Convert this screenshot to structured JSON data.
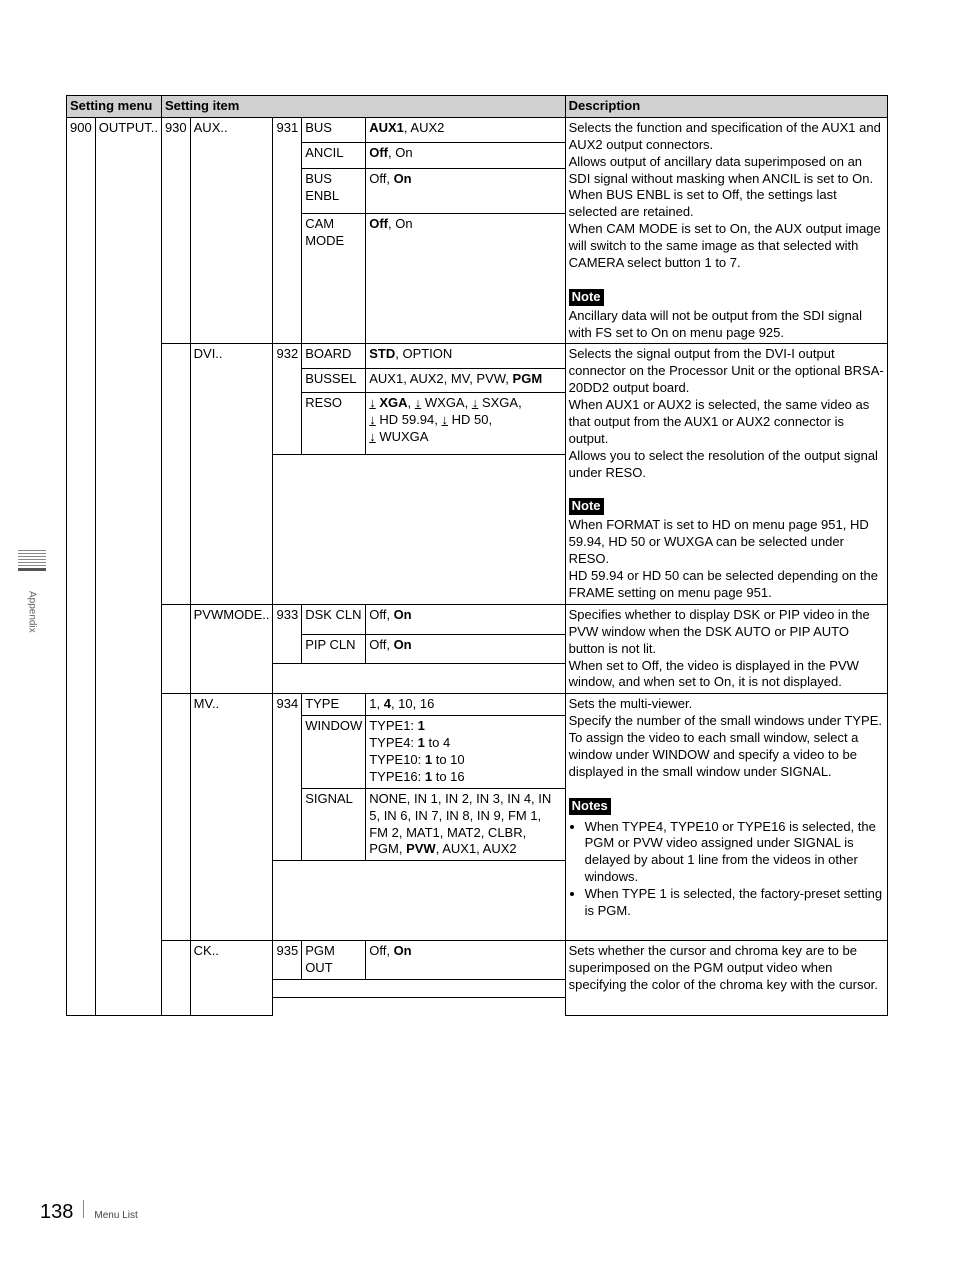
{
  "sidebar": {
    "label": "Appendix"
  },
  "footer": {
    "page": "138",
    "label": "Menu List"
  },
  "headers": {
    "menu": "Setting menu",
    "item": "Setting item",
    "desc": "Description"
  },
  "menu": {
    "num": "900",
    "name": "OUTPUT.."
  },
  "groups": [
    {
      "item_num": "930",
      "item_name": "AUX..",
      "rows": [
        {
          "sub_num": "931",
          "sub_name": "BUS",
          "values_html": "<b>AUX1</b>, AUX2"
        },
        {
          "sub_name": "ANCIL",
          "values_html": "<b>Off</b>, On"
        },
        {
          "sub_name": "BUS ENBL",
          "values_html": "Off, <b>On</b>"
        },
        {
          "sub_name": "CAM MODE",
          "values_html": "<b>Off</b>, On",
          "tall": 130
        }
      ],
      "desc_html": "Selects the function and specification of the AUX1 and AUX2 output connectors.<br>Allows output of ancillary data superimposed on an SDI signal without masking when ANCIL is set to On.<br>When BUS ENBL is set to Off, the settings last selected are retained.<br>When CAM MODE is set to On, the AUX output image will switch to the same image as that selected with CAMERA select button 1 to 7.<br><br><span class=\"note-badge\">Note</span><br>Ancillary data will not be output from the SDI signal with FS set to On on menu page 925."
    },
    {
      "item_name": "DVI..",
      "rows": [
        {
          "sub_num": "932",
          "sub_name": "BOARD",
          "values_html": "<b>STD</b>, OPTION"
        },
        {
          "sub_name": "BUSSEL",
          "values_html": "AUX1, AUX2, MV, PVW, <b>PGM</b>"
        },
        {
          "sub_name": "RESO",
          "values_html": "<u>↓</u> <b>XGA</b>, <u>↓</u> WXGA, <u>↓</u> SXGA,<br><u>↓</u> HD 59.94, <u>↓</u> HD 50,<br><u>↓</u> WUXGA"
        },
        {
          "blank": true,
          "tall": 150
        }
      ],
      "desc_html": "Selects the signal output from the DVI-I output connector on the Processor Unit or the optional BRSA-20DD2 output board.<br>When AUX1 or AUX2 is selected, the same video as that output from the AUX1 or AUX2 connector is output.<br>Allows you to select the resolution of the output signal under RESO.<br><br><span class=\"note-badge\">Note</span><br>When FORMAT is set to HD on menu page 951, HD 59.94, HD 50 or WUXGA can be selected under RESO.<br>HD 59.94 or HD 50 can be selected depending on the FRAME setting on menu page 951."
    },
    {
      "item_name": "PVWMODE..",
      "rows": [
        {
          "sub_num": "933",
          "sub_name": "DSK CLN",
          "values_html": "Off, <b>On</b>"
        },
        {
          "sub_name": "PIP CLN",
          "values_html": "Off, <b>On</b>"
        },
        {
          "blank": true,
          "tall": 30
        }
      ],
      "desc_html": "Specifies whether to display DSK or PIP video in the PVW window when the DSK AUTO or PIP AUTO button is not lit.<br>When set to Off, the video is displayed in the PVW window, and when set to On, it is not displayed."
    },
    {
      "item_name": "MV..",
      "rows": [
        {
          "sub_num": "934",
          "sub_name": "TYPE",
          "values_html": "1, <b>4</b>, 10, 16"
        },
        {
          "sub_name": "WINDOW",
          "values_html": "TYPE1: <b>1</b><br>TYPE4: <b>1</b> to 4<br>TYPE10: <b>1</b> to 10<br>TYPE16: <b>1</b> to 16"
        },
        {
          "sub_name": "SIGNAL",
          "values_html": "NONE, IN 1, IN 2, IN 3, IN 4, IN 5, IN 6, IN 7, IN 8, IN 9, FM 1, FM 2, MAT1, MAT2, CLBR, PGM, <b>PVW</b>, AUX1, AUX2"
        },
        {
          "blank": true,
          "tall": 80
        }
      ],
      "desc_html": "Sets the multi-viewer.<br>Specify the number of the small windows under TYPE.<br>To assign the video to each small window, select a window under WINDOW and specify a video to be displayed in the small window under SIGNAL.<br><br><span class=\"note-badge\">Notes</span><ul class=\"bullet-list\"><li>When TYPE4, TYPE10 or TYPE16 is selected, the PGM or PVW video assigned under SIGNAL is delayed by about 1 line from the videos in other windows.</li><li>When TYPE 1 is selected, the factory-preset setting is PGM.</li></ul>"
    },
    {
      "item_name": "CK..",
      "rows": [
        {
          "sub_num": "935",
          "sub_name": "PGM OUT",
          "values_html": "Off, <b>On</b>"
        },
        {
          "blank": true,
          "tall": 18
        },
        {
          "blank_nb": true,
          "tall": 18
        }
      ],
      "desc_html": "Sets whether the cursor and chroma key are to be superimposed on the PGM output video when specifying the color of the chroma key with the cursor."
    }
  ]
}
